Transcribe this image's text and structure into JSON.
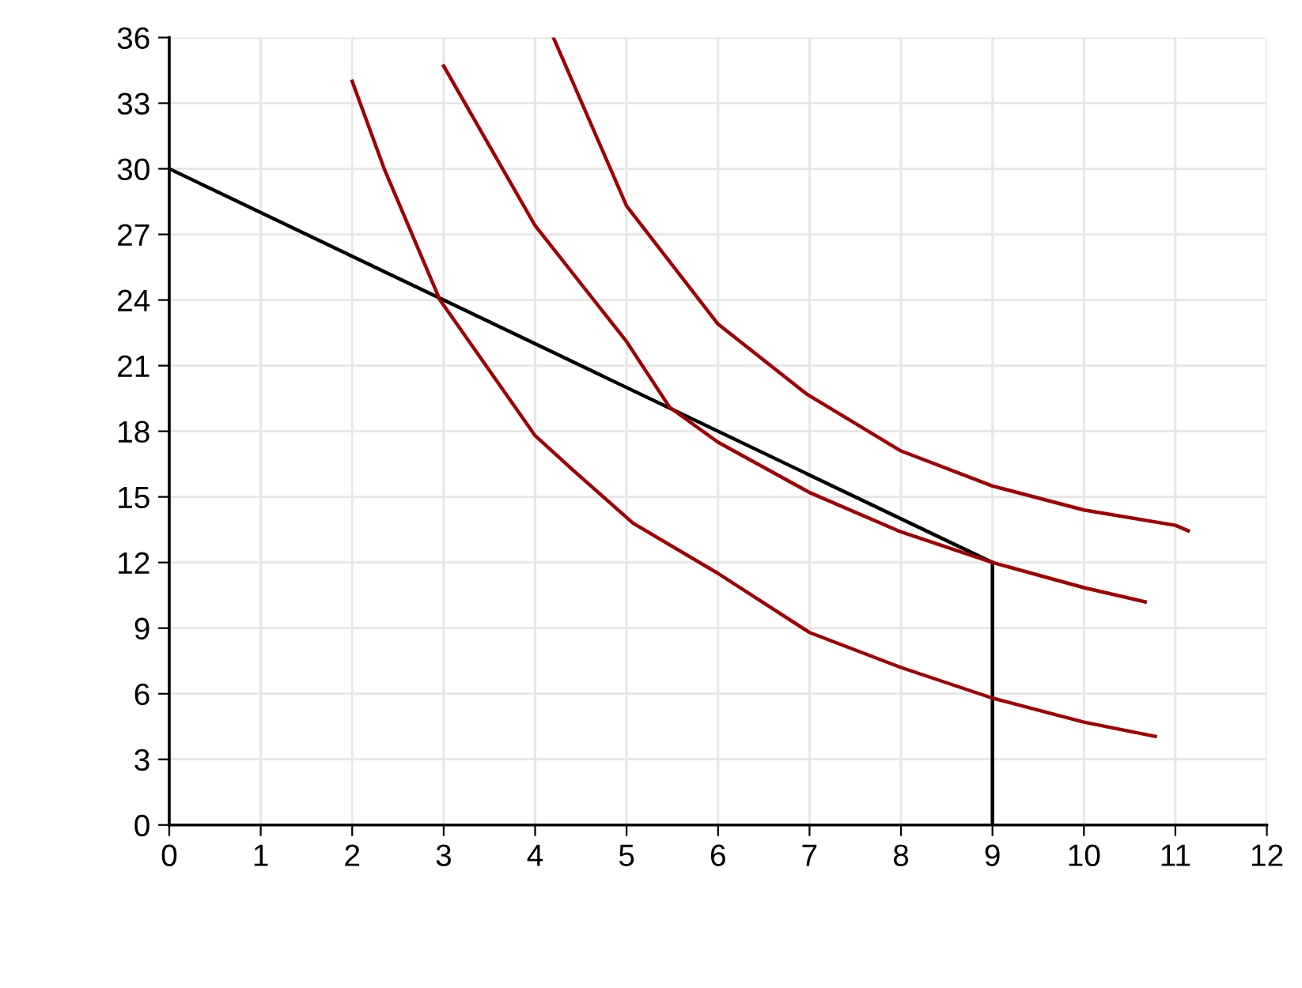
{
  "chart_data": {
    "type": "line",
    "xlim": [
      0,
      12
    ],
    "ylim": [
      0,
      36
    ],
    "xticks": [
      0,
      1,
      2,
      3,
      4,
      5,
      6,
      7,
      8,
      9,
      10,
      11,
      12
    ],
    "yticks": [
      0,
      3,
      6,
      9,
      12,
      15,
      18,
      21,
      24,
      27,
      30,
      33,
      36
    ],
    "grid": true,
    "marker": "none",
    "line_style": "solid",
    "series": [
      {
        "color": "#000000",
        "x": [
          0,
          9
        ],
        "values": [
          30,
          12
        ]
      },
      {
        "color": "#000000",
        "x": [
          9,
          9
        ],
        "values": [
          0,
          12
        ]
      },
      {
        "color": "#a00000",
        "x": [
          2,
          2.35,
          2.96,
          4,
          4.42,
          5.07,
          6,
          7,
          8,
          9,
          10,
          10.78
        ],
        "values": [
          34,
          30,
          24,
          17.8,
          16.2,
          13.8,
          11.5,
          8.8,
          7.2,
          5.8,
          4.7,
          4.05
        ]
      },
      {
        "color": "#a00000",
        "x": [
          3,
          4,
          5,
          5.47,
          6,
          7,
          8,
          9,
          10,
          10.67
        ],
        "values": [
          34.7,
          27.4,
          22.1,
          19.1,
          17.5,
          15.2,
          13.4,
          12,
          10.85,
          10.2
        ]
      },
      {
        "color": "#a00000",
        "x": [
          4.2,
          5,
          6,
          6.97,
          8,
          9,
          10,
          11,
          11.14
        ],
        "values": [
          36,
          28.3,
          22.9,
          19.7,
          17.1,
          15.5,
          14.4,
          13.7,
          13.45
        ]
      }
    ]
  }
}
